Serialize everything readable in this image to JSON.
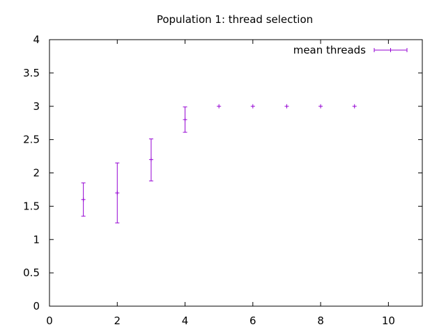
{
  "chart_data": {
    "type": "scatter",
    "title": "Population 1: thread selection",
    "xlabel": "",
    "ylabel": "",
    "xlim": [
      0,
      11
    ],
    "ylim": [
      0,
      4
    ],
    "x_ticks": [
      0,
      2,
      4,
      6,
      8,
      10
    ],
    "x_tick_labels": [
      "0",
      "2",
      "4",
      "6",
      "8",
      "10"
    ],
    "y_ticks": [
      0,
      0.5,
      1,
      1.5,
      2,
      2.5,
      3,
      3.5,
      4
    ],
    "y_tick_labels": [
      "0",
      "0.5",
      "1",
      "1.5",
      "2",
      "2.5",
      "3",
      "3.5",
      "4"
    ],
    "grid": false,
    "legend_position": "top-right",
    "series": [
      {
        "name": "mean threads",
        "color": "#9400d3",
        "marker": "plus-with-error-bars",
        "points": [
          {
            "x": 1,
            "y": 1.6,
            "ylow": 1.35,
            "yhigh": 1.85
          },
          {
            "x": 2,
            "y": 1.7,
            "ylow": 1.25,
            "yhigh": 2.15
          },
          {
            "x": 3,
            "y": 2.2,
            "ylow": 1.88,
            "yhigh": 2.51
          },
          {
            "x": 4,
            "y": 2.8,
            "ylow": 2.61,
            "yhigh": 2.99
          },
          {
            "x": 5,
            "y": 3.0,
            "ylow": 3.0,
            "yhigh": 3.0
          },
          {
            "x": 6,
            "y": 3.0,
            "ylow": 3.0,
            "yhigh": 3.0
          },
          {
            "x": 7,
            "y": 3.0,
            "ylow": 3.0,
            "yhigh": 3.0
          },
          {
            "x": 8,
            "y": 3.0,
            "ylow": 3.0,
            "yhigh": 3.0
          },
          {
            "x": 9,
            "y": 3.0,
            "ylow": 3.0,
            "yhigh": 3.0
          }
        ]
      }
    ]
  }
}
